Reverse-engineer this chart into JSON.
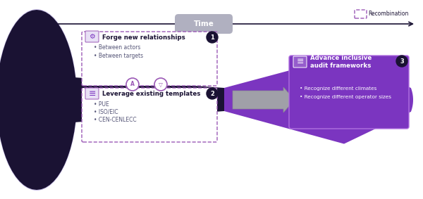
{
  "bg_color": "#ffffff",
  "funnel_dark": "#1a1233",
  "funnel_light": "#c8bfe7",
  "purple_col": "#7b35c0",
  "dashed_purple": "#9b59b6",
  "time_line_color": "#1a1233",
  "box1_title": "Forge new relationships",
  "box1_num": "1",
  "box1_bullets": [
    "Between actors",
    "Between targets"
  ],
  "box2_title": "Leverage existing templates",
  "box2_num": "2",
  "box2_bullets": [
    "PUE",
    "ISO/EIC",
    "CEN-CENLECC"
  ],
  "box3_title": "Advance inclusive\naudit frameworks",
  "box3_num": "3",
  "box3_bullets": [
    "Recognize different climates",
    "Recognize different operator sizes"
  ],
  "legend_label": "Recombination",
  "time_label": "Time"
}
